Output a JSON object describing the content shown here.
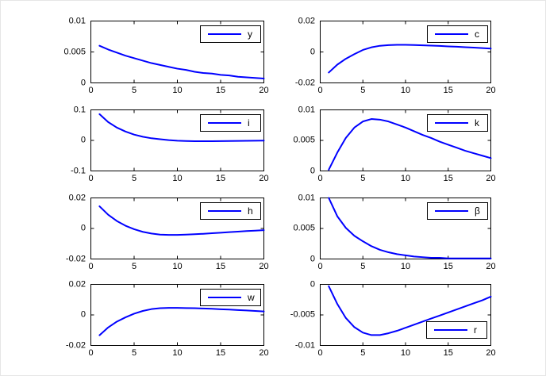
{
  "figure": {
    "background": "#ffffff",
    "line_color": "#0000ff",
    "axis_color": "#000000",
    "text_color": "#000000",
    "line_width": 2,
    "tick_length": 4
  },
  "chart_data": [
    {
      "type": "line",
      "label": "y",
      "legend_position": "top-right",
      "xlim": [
        0,
        20
      ],
      "ylim": [
        0,
        0.01
      ],
      "grid": false,
      "xticks": [
        0,
        5,
        10,
        15,
        20
      ],
      "xtick_labels": [
        "0",
        "5",
        "10",
        "15",
        "20"
      ],
      "yticks": [
        0,
        0.005,
        0.01
      ],
      "ytick_labels": [
        "0",
        "0.005",
        "0.01"
      ],
      "x": [
        1,
        2,
        3,
        4,
        5,
        6,
        7,
        8,
        9,
        10,
        11,
        12,
        13,
        14,
        15,
        16,
        17,
        18,
        19,
        20
      ],
      "values": [
        0.006,
        0.0054,
        0.0049,
        0.0044,
        0.004,
        0.0036,
        0.0032,
        0.0029,
        0.0026,
        0.0023,
        0.0021,
        0.0018,
        0.0016,
        0.0015,
        0.0013,
        0.0012,
        0.001,
        0.0009,
        0.0008,
        0.0007
      ]
    },
    {
      "type": "line",
      "label": "c",
      "legend_position": "top-right",
      "xlim": [
        0,
        20
      ],
      "ylim": [
        -0.02,
        0.02
      ],
      "grid": false,
      "xticks": [
        0,
        5,
        10,
        15,
        20
      ],
      "xtick_labels": [
        "0",
        "5",
        "10",
        "15",
        "20"
      ],
      "yticks": [
        -0.02,
        0,
        0.02
      ],
      "ytick_labels": [
        "-0.02",
        "0",
        "0.02"
      ],
      "x": [
        1,
        2,
        3,
        4,
        5,
        6,
        7,
        8,
        9,
        10,
        11,
        12,
        13,
        14,
        15,
        16,
        17,
        18,
        19,
        20
      ],
      "values": [
        -0.0133,
        -0.0082,
        -0.0044,
        -0.0014,
        0.0013,
        0.003,
        0.004,
        0.0044,
        0.0046,
        0.0046,
        0.0045,
        0.0043,
        0.0041,
        0.0039,
        0.0036,
        0.0034,
        0.0031,
        0.0028,
        0.0025,
        0.0022
      ]
    },
    {
      "type": "line",
      "label": "i",
      "legend_position": "top-right",
      "xlim": [
        0,
        20
      ],
      "ylim": [
        -0.1,
        0.1
      ],
      "grid": false,
      "xticks": [
        0,
        5,
        10,
        15,
        20
      ],
      "xtick_labels": [
        "0",
        "5",
        "10",
        "15",
        "20"
      ],
      "yticks": [
        -0.1,
        0,
        0.1
      ],
      "ytick_labels": [
        "-0.1",
        "0",
        "0.1"
      ],
      "x": [
        1,
        2,
        3,
        4,
        5,
        6,
        7,
        8,
        9,
        10,
        11,
        12,
        13,
        14,
        15,
        16,
        17,
        18,
        19,
        20
      ],
      "values": [
        0.086,
        0.06,
        0.042,
        0.029,
        0.019,
        0.012,
        0.007,
        0.004,
        0.001,
        -0.001,
        -0.002,
        -0.0025,
        -0.0027,
        -0.0026,
        -0.0024,
        -0.0021,
        -0.0017,
        -0.0013,
        -0.0009,
        -0.0005
      ]
    },
    {
      "type": "line",
      "label": "k",
      "legend_position": "top-right",
      "xlim": [
        0,
        20
      ],
      "ylim": [
        0,
        0.01
      ],
      "grid": false,
      "xticks": [
        0,
        5,
        10,
        15,
        20
      ],
      "xtick_labels": [
        "0",
        "5",
        "10",
        "15",
        "20"
      ],
      "yticks": [
        0,
        0.005,
        0.01
      ],
      "ytick_labels": [
        "0",
        "0.005",
        "0.01"
      ],
      "x": [
        1,
        2,
        3,
        4,
        5,
        6,
        7,
        8,
        9,
        10,
        11,
        12,
        13,
        14,
        15,
        16,
        17,
        18,
        19,
        20
      ],
      "values": [
        0.0002,
        0.003,
        0.0054,
        0.0071,
        0.0081,
        0.0085,
        0.0084,
        0.0081,
        0.0076,
        0.0071,
        0.0065,
        0.0059,
        0.0054,
        0.0048,
        0.0043,
        0.0038,
        0.0033,
        0.0029,
        0.0025,
        0.0021
      ]
    },
    {
      "type": "line",
      "label": "h",
      "legend_position": "top-right",
      "xlim": [
        0,
        20
      ],
      "ylim": [
        -0.02,
        0.02
      ],
      "grid": false,
      "xticks": [
        0,
        5,
        10,
        15,
        20
      ],
      "xtick_labels": [
        "0",
        "5",
        "10",
        "15",
        "20"
      ],
      "yticks": [
        -0.02,
        0,
        0.02
      ],
      "ytick_labels": [
        "-0.02",
        "0",
        "0.02"
      ],
      "x": [
        1,
        2,
        3,
        4,
        5,
        6,
        7,
        8,
        9,
        10,
        11,
        12,
        13,
        14,
        15,
        16,
        17,
        18,
        19,
        20
      ],
      "values": [
        0.0145,
        0.009,
        0.0049,
        0.0018,
        -0.0005,
        -0.0022,
        -0.0033,
        -0.004,
        -0.0042,
        -0.0042,
        -0.004,
        -0.0038,
        -0.0035,
        -0.0031,
        -0.0028,
        -0.0024,
        -0.0021,
        -0.0017,
        -0.0014,
        -0.0011
      ]
    },
    {
      "type": "line",
      "label": "β",
      "legend_position": "top-right",
      "xlim": [
        0,
        20
      ],
      "ylim": [
        0,
        0.01
      ],
      "grid": false,
      "xticks": [
        0,
        5,
        10,
        15,
        20
      ],
      "xtick_labels": [
        "0",
        "5",
        "10",
        "15",
        "20"
      ],
      "yticks": [
        0,
        0.005,
        0.01
      ],
      "ytick_labels": [
        "0",
        "0.005",
        "0.01"
      ],
      "x": [
        1,
        2,
        3,
        4,
        5,
        6,
        7,
        8,
        9,
        10,
        11,
        12,
        13,
        14,
        15,
        16,
        17,
        18,
        19,
        20
      ],
      "values": [
        0.01,
        0.007,
        0.0051,
        0.0038,
        0.0029,
        0.0021,
        0.0015,
        0.0011,
        0.0008,
        0.0006,
        0.0004,
        0.0003,
        0.0002,
        0.0002,
        0.0001,
        0.0001,
        0.0001,
        0.0001,
        0.0001,
        0.0001
      ]
    },
    {
      "type": "line",
      "label": "w",
      "legend_position": "top-right",
      "xlim": [
        0,
        20
      ],
      "ylim": [
        -0.02,
        0.02
      ],
      "grid": false,
      "xticks": [
        0,
        5,
        10,
        15,
        20
      ],
      "xtick_labels": [
        "0",
        "5",
        "10",
        "15",
        "20"
      ],
      "yticks": [
        -0.02,
        0,
        0.02
      ],
      "ytick_labels": [
        "-0.02",
        "0",
        "0.02"
      ],
      "x": [
        1,
        2,
        3,
        4,
        5,
        6,
        7,
        8,
        9,
        10,
        11,
        12,
        13,
        14,
        15,
        16,
        17,
        18,
        19,
        20
      ],
      "values": [
        -0.0133,
        -0.0082,
        -0.0044,
        -0.0016,
        0.0008,
        0.0026,
        0.0038,
        0.0044,
        0.0046,
        0.0046,
        0.0045,
        0.0044,
        0.0042,
        0.004,
        0.0037,
        0.0035,
        0.0032,
        0.0029,
        0.0026,
        0.0023
      ]
    },
    {
      "type": "line",
      "label": "r",
      "legend_position": "bottom-right",
      "xlim": [
        0,
        20
      ],
      "ylim": [
        -0.01,
        0
      ],
      "grid": false,
      "xticks": [
        0,
        5,
        10,
        15,
        20
      ],
      "xtick_labels": [
        "0",
        "5",
        "10",
        "15",
        "20"
      ],
      "yticks": [
        -0.01,
        -0.005,
        0
      ],
      "ytick_labels": [
        "-0.01",
        "-0.005",
        "0"
      ],
      "x": [
        1,
        2,
        3,
        4,
        5,
        6,
        7,
        8,
        9,
        10,
        11,
        12,
        13,
        14,
        15,
        16,
        17,
        18,
        19,
        20
      ],
      "values": [
        -0.0003,
        -0.0032,
        -0.0055,
        -0.007,
        -0.0079,
        -0.0083,
        -0.0083,
        -0.008,
        -0.0076,
        -0.0071,
        -0.0066,
        -0.0061,
        -0.0056,
        -0.0051,
        -0.0046,
        -0.0041,
        -0.0036,
        -0.0031,
        -0.0026,
        -0.002
      ]
    }
  ]
}
